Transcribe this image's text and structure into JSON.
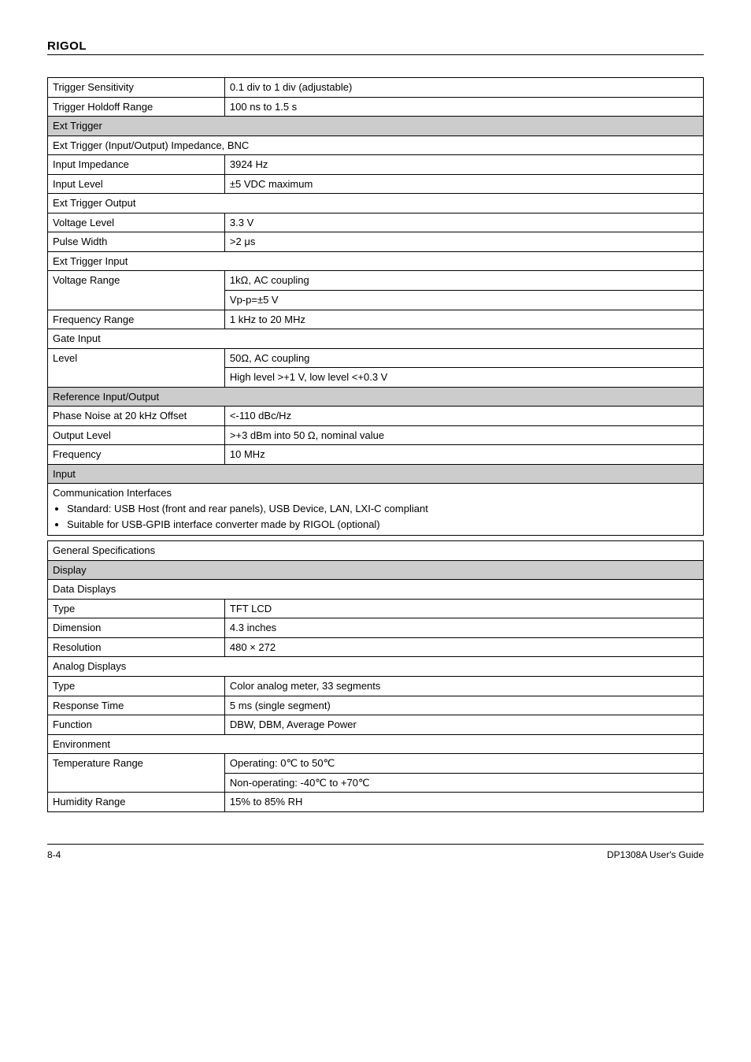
{
  "header": {
    "brand": "RIGOL"
  },
  "top_rows": [
    {
      "label": "Trigger Sensitivity",
      "value": "0.1 div to 1 div (adjustable)"
    },
    {
      "label": "Trigger Holdoff Range",
      "value": "100 ns to 1.5 s"
    }
  ],
  "ext_trigger": {
    "section": "Ext Trigger",
    "sub1": "Ext Trigger (Input/Output) Impedance, BNC",
    "rows1": [
      {
        "label": "Input Impedance",
        "value": "3924 Hz"
      },
      {
        "label": "Input Level",
        "value": "±5 VDC maximum"
      }
    ],
    "sub2": "Ext Trigger Output",
    "rows2": [
      {
        "label": "Voltage Level",
        "value": "3.3 V"
      },
      {
        "label": "Pulse Width",
        "value": ">2 μs"
      }
    ],
    "sub3": "Ext Trigger Input",
    "row3a_label": "Voltage Range",
    "row3a_val": "1kΩ, AC coupling",
    "row3b_val": "Vp-p=±5 V",
    "row3c_label": "Frequency Range",
    "row3c_val": "1 kHz to 20 MHz",
    "sub4": "Gate Input",
    "row4a_label": "Level",
    "row4a_val": "50Ω, AC coupling",
    "row4b_val": "High level >+1 V, low level <+0.3 V"
  },
  "ref_io": {
    "section": "Reference Input/Output",
    "rows": [
      {
        "label": "Phase Noise at 20 kHz Offset",
        "value": "<-110 dBc/Hz"
      },
      {
        "label": "Output Level",
        "value": ">+3 dBm into 50 Ω, nominal value"
      },
      {
        "label": "Frequency",
        "value": "10 MHz"
      }
    ]
  },
  "input": {
    "section": "Input",
    "sub": "Communication Interfaces",
    "bullets": [
      "Standard: USB Host (front and rear panels), USB Device, LAN, LXI-C compliant",
      "Suitable for USB-GPIB interface converter made by RIGOL (optional)"
    ]
  },
  "general": {
    "section": "General Specifications",
    "display": {
      "section": "Display",
      "sub1": "Data Displays",
      "rows1": [
        {
          "label": "Type",
          "value": "TFT LCD"
        },
        {
          "label": "Dimension",
          "value": "4.3 inches"
        },
        {
          "label": "Resolution",
          "value": "480 × 272"
        }
      ],
      "sub2": "Analog Displays",
      "rows2": [
        {
          "label": "Type",
          "value": "Color analog meter, 33 segments"
        },
        {
          "label": "Response Time",
          "value": "5 ms (single segment)"
        },
        {
          "label": "Function",
          "value": "DBW, DBM, Average Power"
        }
      ]
    },
    "env": {
      "sub": "Environment",
      "row_temp_label": "Temperature Range",
      "row_temp_op": "Operating: 0℃ to 50℃",
      "row_temp_no": "Non-operating: -40℃ to +70℃",
      "row_hum_label": "Humidity Range",
      "row_hum_val": "15% to 85% RH"
    }
  },
  "footer": {
    "left": "8-4",
    "right": "DP1308A User's Guide"
  },
  "colors": {
    "section_bg": "#cccccc",
    "border": "#000000",
    "text": "#000000",
    "page_bg": "#ffffff"
  },
  "typography": {
    "body_fontsize": 13,
    "brand_fontsize": 15,
    "footer_fontsize": 12
  }
}
